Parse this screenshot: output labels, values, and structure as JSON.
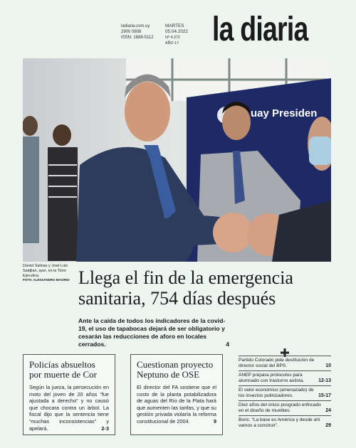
{
  "header": {
    "website": "ladiaria.com.uy",
    "phone": "2900 0808",
    "issn": "ISSN: 1688-5112",
    "weekday": "MARTES",
    "date": "05.04.2022",
    "issue": "Nº 4.372",
    "year": "AÑO 17",
    "logo": "la diaria"
  },
  "photo": {
    "banner_text": "uay Presiden",
    "caption": "Daniel Salinas y José Luis Satdjian, ayer, en la Torre Ejecutiva.",
    "credit": "FOTO: ALESSANDRO MAIORDI"
  },
  "lead_story": {
    "headline": "Llega el fin de la emergencia sanitaria, 754 días después",
    "summary": "Ante la caída de todos los indicadores de la covid-19, el uso de tapabocas dejará de ser obligatorio y cesarán las reducciones de aforo en locales cerrados.",
    "page": "4"
  },
  "stories": [
    {
      "title": "Policías absueltos por muerte de Cor",
      "body": "Según la jueza, la persecución en moto del joven de 20 años “fue ajustada a derecho” y no causó que chocara contra un árbol. La fiscal dijo que la sentencia tiene “muchas inconsistencias” y apelará.",
      "page": "2-3"
    },
    {
      "title": "Cuestionan proyecto Neptuno de OSE",
      "body": "El director del FA sostiene que el costo de la planta potabilizadora de aguas del Río de la Plata hará que aumenten las tarifas, y que su gestión privada violaría la reforma constitucional de 2004.",
      "page": "9"
    }
  ],
  "briefs": [
    {
      "text": "Partido Colorado pide destitución de director social del BPS.",
      "page": "10"
    },
    {
      "text": "ANEP prepara protocolos para alumnado con trastorno autista.",
      "page": "12-13"
    },
    {
      "text": "El valor económico (amenazado) de los insectos polinizadores.",
      "page": "15-17"
    },
    {
      "text": "Diez años del único posgrado enfocado en el diseño de muebles.",
      "page": "24"
    },
    {
      "text": "Boric: “La base es América y desde ahí vamos a construir”.",
      "page": "29"
    }
  ]
}
